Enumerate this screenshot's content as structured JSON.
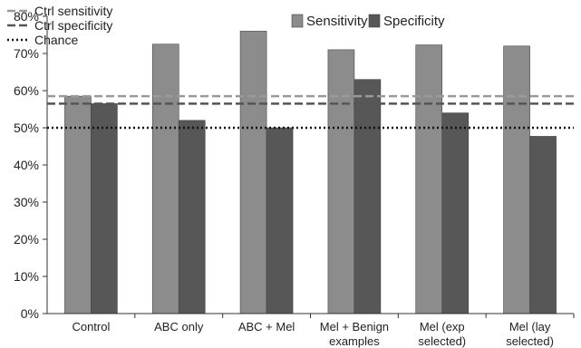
{
  "chart_data": {
    "type": "bar",
    "title": "",
    "xlabel": "",
    "ylabel": "",
    "ylim": [
      0,
      80
    ],
    "y_ticks": [
      "0%",
      "10%",
      "20%",
      "30%",
      "40%",
      "50%",
      "60%",
      "70%",
      "80%"
    ],
    "y_tick_values": [
      0,
      10,
      20,
      30,
      40,
      50,
      60,
      70,
      80
    ],
    "categories": [
      [
        "Control"
      ],
      [
        "ABC only"
      ],
      [
        "ABC + Mel"
      ],
      [
        "Mel + Benign",
        "examples"
      ],
      [
        "Mel (exp",
        "selected)"
      ],
      [
        "Mel (lay",
        "selected)"
      ]
    ],
    "series": [
      {
        "name": "Sensitivity",
        "color": "#8c8c8c",
        "values": [
          58.5,
          72.5,
          76,
          71,
          72.3,
          72
        ]
      },
      {
        "name": "Specificity",
        "color": "#575757",
        "values": [
          56.5,
          52,
          50,
          63,
          54,
          47.7
        ]
      }
    ],
    "reference_lines": [
      {
        "name": "Ctrl sensitivity",
        "value": 58.5,
        "color": "#9a9a9a",
        "style": "dashed"
      },
      {
        "name": "Ctrl specificity",
        "value": 56.5,
        "color": "#555555",
        "style": "dashed"
      },
      {
        "name": "Chance",
        "value": 50,
        "color": "#111111",
        "style": "dotted"
      }
    ],
    "grid": false,
    "legend": {
      "lines_position": "top-left",
      "bars_position": "top-right"
    }
  }
}
